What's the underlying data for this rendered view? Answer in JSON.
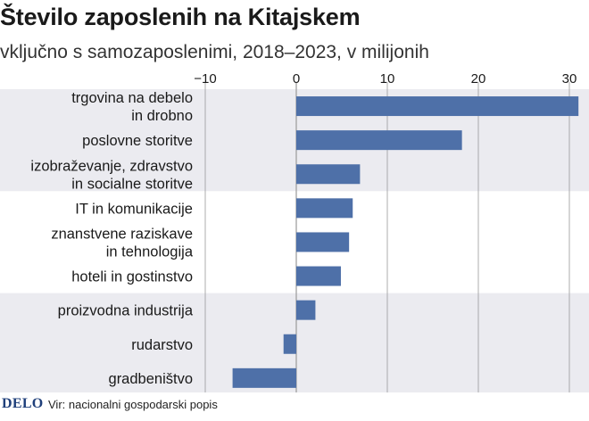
{
  "title": "Število zaposlenih na Kitajskem",
  "subtitle": "vključno s samozaposlenimi, 2018–2023, v milijonih",
  "footer": {
    "logo": "DELO",
    "source": "Vir: nacionalni gospodarski popis"
  },
  "colors": {
    "bar": "#4e70a8",
    "band": "#ebebf0",
    "gridline": "#9a9a9a",
    "text": "#1a1a1a"
  },
  "chart_data": {
    "type": "bar",
    "orientation": "horizontal",
    "xlim": [
      -10,
      31
    ],
    "xticks": [
      -10,
      0,
      10,
      20,
      30
    ],
    "categories": [
      [
        "trgovina na debelo",
        "in drobno"
      ],
      [
        "poslovne storitve"
      ],
      [
        "izobraževanje, zdravstvo",
        "in socialne storitve"
      ],
      [
        "IT in komunikacije"
      ],
      [
        "znanstvene raziskave",
        "in tehnologija"
      ],
      [
        "hoteli in gostinstvo"
      ],
      [
        "proizvodna industrija"
      ],
      [
        "rudarstvo"
      ],
      [
        "gradbeništvo"
      ]
    ],
    "values": [
      31,
      18.2,
      7,
      6.2,
      5.8,
      4.9,
      2.1,
      -1.4,
      -7
    ],
    "groups": [
      {
        "shaded": true,
        "count": 3
      },
      {
        "shaded": false,
        "count": 3
      },
      {
        "shaded": true,
        "count": 3
      }
    ],
    "grid": true,
    "legend": "none"
  }
}
